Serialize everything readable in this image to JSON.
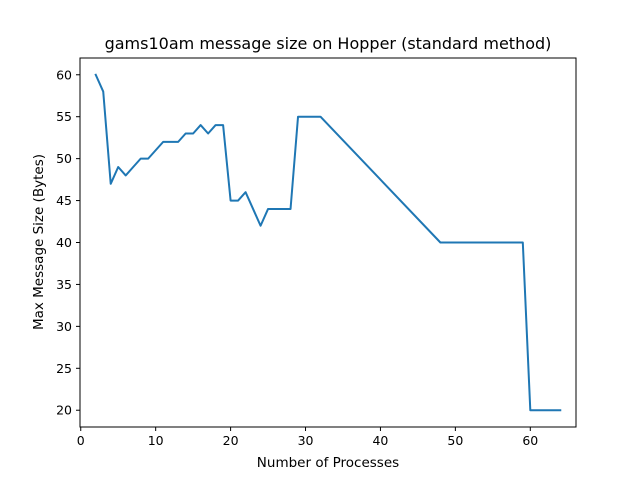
{
  "chart_data": {
    "type": "line",
    "title": "gams10am message size on Hopper (standard method)",
    "xlabel": "Number of Processes",
    "ylabel": "Max Message Size (Bytes)",
    "xlim": [
      -0.1,
      66.1
    ],
    "ylim": [
      18,
      62
    ],
    "xticks": [
      0,
      10,
      20,
      30,
      40,
      50,
      60
    ],
    "yticks": [
      20,
      25,
      30,
      35,
      40,
      45,
      50,
      55,
      60
    ],
    "xtick_labels": [
      "0",
      "10",
      "20",
      "30",
      "40",
      "50",
      "60"
    ],
    "ytick_labels": [
      "20",
      "25",
      "30",
      "35",
      "40",
      "45",
      "50",
      "55",
      "60"
    ],
    "grid": false,
    "series": [
      {
        "color": "#1f77b4",
        "x": [
          2,
          3,
          4,
          5,
          6,
          7,
          8,
          9,
          10,
          11,
          12,
          13,
          14,
          15,
          16,
          17,
          18,
          19,
          20,
          21,
          22,
          23,
          24,
          25,
          26,
          27,
          28,
          29,
          30,
          31,
          32,
          48,
          59,
          60,
          61,
          62,
          63,
          64
        ],
        "y": [
          60,
          58,
          47,
          49,
          48,
          49,
          50,
          50,
          51,
          52,
          52,
          52,
          53,
          53,
          54,
          53,
          54,
          54,
          45,
          45,
          46,
          44,
          42,
          44,
          44,
          44,
          44,
          55,
          55,
          55,
          55,
          40,
          40,
          20,
          20,
          20,
          20,
          20
        ]
      }
    ]
  }
}
